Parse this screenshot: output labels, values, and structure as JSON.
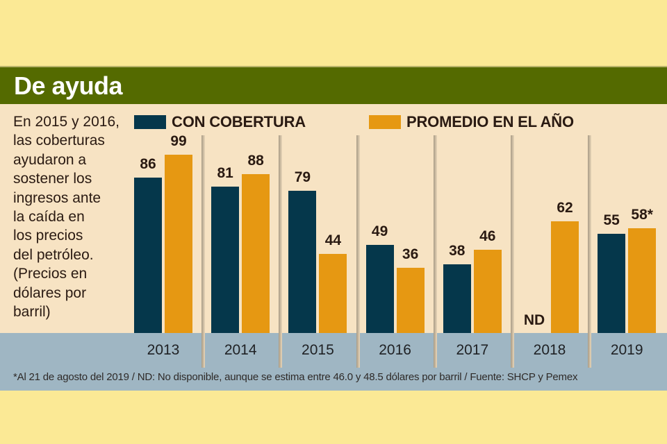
{
  "header": {
    "title": "De ayuda"
  },
  "description": "En 2015 y 2016, las coberturas ayudaron a sostener los ingresos ante la caída en los precios del petróleo. (Precios en dólares por barril)",
  "description_lines": [
    "En 2015 y 2016,",
    "las coberturas",
    "ayudaron a",
    "sostener los",
    "ingresos ante",
    "la caída en",
    "los precios",
    "del petróleo.",
    "(Precios en",
    "dólares por",
    "barril)"
  ],
  "footnote": "*Al 21 de agosto del 2019 / ND: No disponible, aunque se estima entre 46.0 y 48.5 dólares por barril  / Fuente: SHCP y Pemex",
  "colors": {
    "header": "#546a00",
    "background": "#f7e3c3",
    "outer": "#fbe995",
    "axis_band": "#9fb6c3",
    "con_cobertura": "#05374b",
    "promedio": "#e69812"
  },
  "chart_data": {
    "type": "bar",
    "title": "De ayuda",
    "xlabel": "",
    "ylabel": "Precios en dólares por barril",
    "categories": [
      "2013",
      "2014",
      "2015",
      "2016",
      "2017",
      "2018",
      "2019"
    ],
    "series": [
      {
        "name": "CON COBERTURA",
        "color": "#05374b",
        "values": [
          86,
          81,
          79,
          49,
          38,
          null,
          55
        ],
        "labels": [
          "86",
          "81",
          "79",
          "49",
          "38",
          "ND",
          "55"
        ]
      },
      {
        "name": "PROMEDIO EN EL AÑO",
        "color": "#e69812",
        "values": [
          99,
          88,
          44,
          36,
          46,
          62,
          58
        ],
        "labels": [
          "99",
          "88",
          "44",
          "36",
          "46",
          "62",
          "58*"
        ]
      }
    ],
    "ylim": [
      0,
      100
    ],
    "grid": false,
    "legend": "top"
  }
}
